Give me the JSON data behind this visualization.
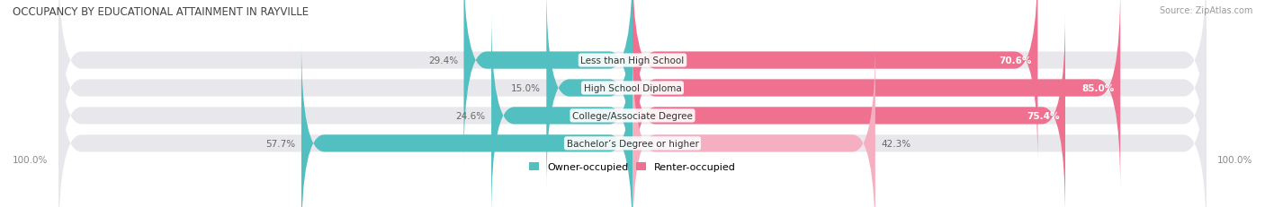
{
  "title": "OCCUPANCY BY EDUCATIONAL ATTAINMENT IN RAYVILLE",
  "source": "Source: ZipAtlas.com",
  "categories": [
    "Less than High School",
    "High School Diploma",
    "College/Associate Degree",
    "Bachelor’s Degree or higher"
  ],
  "owner_pct": [
    29.4,
    15.0,
    24.6,
    57.7
  ],
  "renter_pct": [
    70.6,
    85.0,
    75.4,
    42.3
  ],
  "owner_color": "#52bfc1",
  "renter_colors": [
    "#f07090",
    "#f07090",
    "#f07090",
    "#f5afc0"
  ],
  "bar_bg_color": "#e8e8ec",
  "background_color": "#ffffff",
  "bar_height": 0.62,
  "title_color": "#444444",
  "source_color": "#999999",
  "label_color_outside": "#666666",
  "label_color_inside": "#ffffff",
  "label_color_dark": "#555555",
  "axis_label": "100.0%"
}
